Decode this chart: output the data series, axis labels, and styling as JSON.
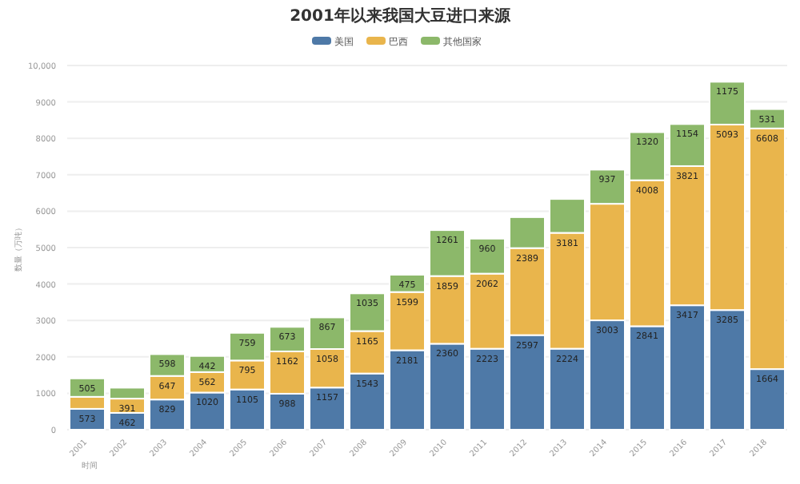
{
  "chart_data": {
    "type": "bar",
    "stacked": true,
    "title": "2001年以来我国大豆进口来源",
    "xlabel": "时间",
    "ylabel": "数量（万吨）",
    "categories": [
      "2001",
      "2002",
      "2003",
      "2004",
      "2005",
      "2006",
      "2007",
      "2008",
      "2009",
      "2010",
      "2011",
      "2012",
      "2013",
      "2014",
      "2015",
      "2016",
      "2017",
      "2018"
    ],
    "series": [
      {
        "name": "美国",
        "color": "#4e79a7",
        "values": [
          573,
          462,
          829,
          1020,
          1105,
          988,
          1157,
          1543,
          2181,
          2360,
          2223,
          2597,
          2224,
          3003,
          2841,
          3417,
          3285,
          1664
        ],
        "value_labels": [
          "573",
          "462",
          "829",
          "1020",
          "1105",
          "988",
          "1157",
          "1543",
          "2181",
          "2360",
          "2223",
          "2597",
          "2224",
          "3003",
          "2841",
          "3417",
          "3285",
          "1664"
        ]
      },
      {
        "name": "巴西",
        "color": "#e9b54c",
        "values": [
          330,
          391,
          647,
          562,
          795,
          1162,
          1058,
          1165,
          1599,
          1859,
          2062,
          2389,
          3181,
          3200,
          4008,
          3821,
          5093,
          6608
        ],
        "value_labels": [
          null,
          "391",
          "647",
          "562",
          "795",
          "1162",
          "1058",
          "1165",
          "1599",
          "1859",
          "2062",
          "2389",
          "3181",
          null,
          "4008",
          "3821",
          "5093",
          "6608"
        ]
      },
      {
        "name": "其他国家",
        "color": "#8cb86a",
        "values": [
          505,
          300,
          598,
          442,
          759,
          673,
          867,
          1035,
          475,
          1261,
          960,
          850,
          930,
          937,
          1320,
          1154,
          1175,
          531
        ],
        "value_labels": [
          "505",
          null,
          "598",
          "442",
          "759",
          "673",
          "867",
          "1035",
          "475",
          "1261",
          "960",
          null,
          null,
          "937",
          "1320",
          "1154",
          "1175",
          "531"
        ]
      }
    ],
    "ylim": [
      0,
      10000
    ],
    "yticks": [
      0,
      1000,
      2000,
      3000,
      4000,
      5000,
      6000,
      7000,
      8000,
      9000,
      {
        "value": 10000,
        "label": "10,000"
      }
    ],
    "grid": "y",
    "legend": "top"
  }
}
